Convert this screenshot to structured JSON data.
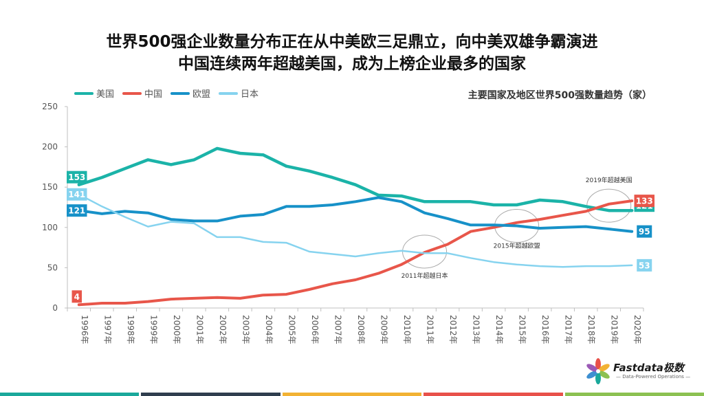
{
  "title_line1": "世界500强企业数量分布正在从中美欧三足鼎立，向中美双雄争霸演进",
  "title_line2": "中国连续两年超越美国，成为上榜企业最多的国家",
  "subtitle": "主要国家及地区世界500强数量趋势（家）",
  "logo": {
    "name": "Fastdata极数",
    "tagline": "— Data-Powered Operations —"
  },
  "footer_colors": [
    "#1aa89b",
    "#2f3e4e",
    "#f2b233",
    "#e8514a",
    "#8cc152"
  ],
  "chart_data": {
    "type": "line",
    "title": "主要国家及地区世界500强数量趋势（家）",
    "categories": [
      "1996年",
      "1997年",
      "1998年",
      "1999年",
      "2000年",
      "2001年",
      "2002年",
      "2003年",
      "2004年",
      "2005年",
      "2006年",
      "2007年",
      "2008年",
      "2009年",
      "2010年",
      "2011年",
      "2012年",
      "2013年",
      "2014年",
      "2015年",
      "2016年",
      "2017年",
      "2018年",
      "2019年",
      "2020年"
    ],
    "ylim": [
      0,
      250
    ],
    "yticks": [
      0,
      50,
      100,
      150,
      200,
      250
    ],
    "grid": false,
    "legend": "top-left",
    "series": [
      {
        "name": "美国",
        "color": "#1bb3a8",
        "width": 4.5,
        "values": [
          153,
          162,
          173,
          184,
          178,
          184,
          198,
          192,
          190,
          176,
          170,
          162,
          153,
          140,
          139,
          132,
          132,
          132,
          128,
          128,
          134,
          132,
          126,
          121,
          121
        ],
        "end_labels": {
          "first": "153",
          "last": "121"
        }
      },
      {
        "name": "中国",
        "color": "#e8564a",
        "width": 4,
        "values": [
          4,
          6,
          6,
          8,
          11,
          12,
          13,
          12,
          16,
          17,
          23,
          30,
          35,
          43,
          54,
          69,
          79,
          95,
          100,
          106,
          110,
          115,
          120,
          129,
          133
        ],
        "end_labels": {
          "first": "4",
          "last": "133"
        }
      },
      {
        "name": "欧盟",
        "color": "#1791c8",
        "width": 4,
        "values": [
          121,
          117,
          120,
          118,
          110,
          108,
          108,
          114,
          116,
          126,
          126,
          128,
          132,
          137,
          132,
          118,
          111,
          103,
          103,
          102,
          99,
          100,
          101,
          98,
          95
        ],
        "end_labels": {
          "first": "121",
          "last": "95"
        }
      },
      {
        "name": "日本",
        "color": "#86d3ef",
        "width": 2.5,
        "values": [
          141,
          126,
          113,
          101,
          107,
          105,
          88,
          88,
          82,
          81,
          70,
          67,
          64,
          68,
          71,
          68,
          68,
          62,
          57,
          54,
          52,
          51,
          52,
          52,
          53
        ],
        "end_labels": {
          "first": "141",
          "last": "53"
        }
      }
    ],
    "annotations": [
      {
        "text": "2011年超越日本",
        "x_index": 15,
        "y": 70
      },
      {
        "text": "2015年超越欧盟",
        "x_index": 19,
        "y": 102
      },
      {
        "text": "2019年超越美国",
        "x_index": 23,
        "y": 127
      }
    ]
  }
}
